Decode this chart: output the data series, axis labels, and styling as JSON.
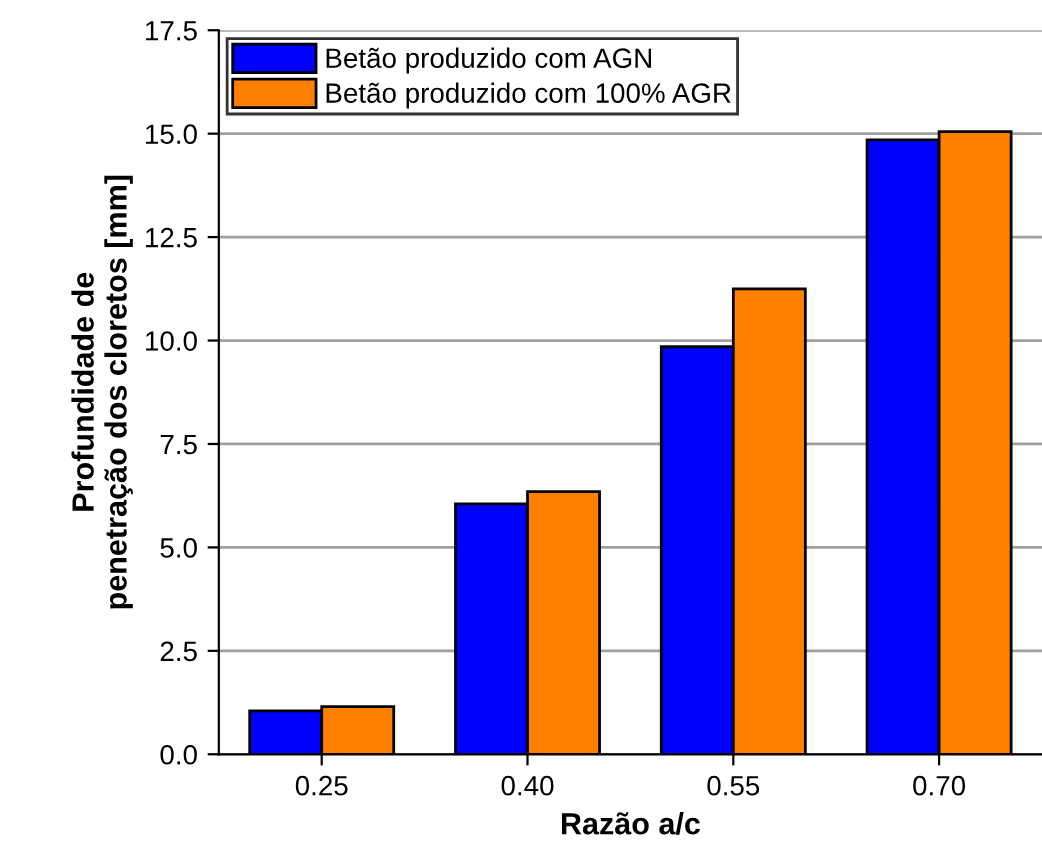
{
  "chart_data": {
    "type": "bar",
    "xlabel": "Razão a/c",
    "ylabel": "Profundidade de\npenetração dos cloretos [mm]",
    "categories": [
      "0.25",
      "0.40",
      "0.55",
      "0.70"
    ],
    "series": [
      {
        "name": "Betão produzido com AGN",
        "color": "#0000ff",
        "values": [
          1.05,
          6.05,
          9.85,
          14.85
        ]
      },
      {
        "name": "Betão produzido com 100% AGR",
        "color": "#ff8000",
        "values": [
          1.15,
          6.35,
          11.25,
          15.05
        ]
      }
    ],
    "ylim": [
      0,
      17.5
    ],
    "yticks": [
      {
        "value": 0,
        "label": "0.0"
      },
      2.5,
      {
        "value": 5,
        "label": "5.0"
      },
      7.5,
      {
        "value": 10,
        "label": "10.0"
      },
      12.5,
      {
        "value": 15,
        "label": "15.0"
      },
      17.5
    ],
    "grid": "y",
    "legend": "top left"
  }
}
